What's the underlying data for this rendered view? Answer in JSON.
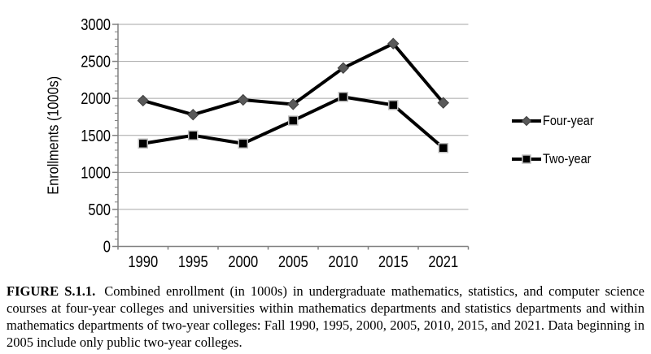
{
  "figure": {
    "caption_label": "FIGURE S.1.1.",
    "caption_text": "Combined enrollment (in 1000s) in undergraduate mathematics, statistics, and computer science courses at four-year colleges and universities within mathematics departments and statistics departments and within mathematics departments of two-year colleges: Fall 1990, 1995, 2000, 2005, 2010, 2015, and 2021. Data beginning in 2005 include only public two-year colleges."
  },
  "chart_data": {
    "type": "line",
    "title": "",
    "xlabel": "",
    "ylabel": "Enrollments (1000s)",
    "categories": [
      "1990",
      "1995",
      "2000",
      "2005",
      "2010",
      "2015",
      "2021"
    ],
    "series": [
      {
        "name": "Four-year",
        "values": [
          1970,
          1780,
          1980,
          1920,
          2410,
          2740,
          1940
        ],
        "line_color": "#000000",
        "marker": "diamond",
        "marker_color": "#595959",
        "marker_outline": "#3f3f3f"
      },
      {
        "name": "Two-year",
        "values": [
          1390,
          1500,
          1390,
          1700,
          2020,
          1910,
          1330
        ],
        "line_color": "#000000",
        "marker": "square",
        "marker_color": "#000000",
        "marker_outline": "#bfbfbf"
      }
    ],
    "ylim": [
      0,
      3000
    ],
    "ytick_step": 500,
    "y_minor_step": 100,
    "yticks": [
      "0",
      "500",
      "1000",
      "1500",
      "2000",
      "2500",
      "3000"
    ],
    "grid": "horizontal-major",
    "gridline_color": "#a6a6a6",
    "axis_color": "#808080",
    "legend_position": "right"
  }
}
